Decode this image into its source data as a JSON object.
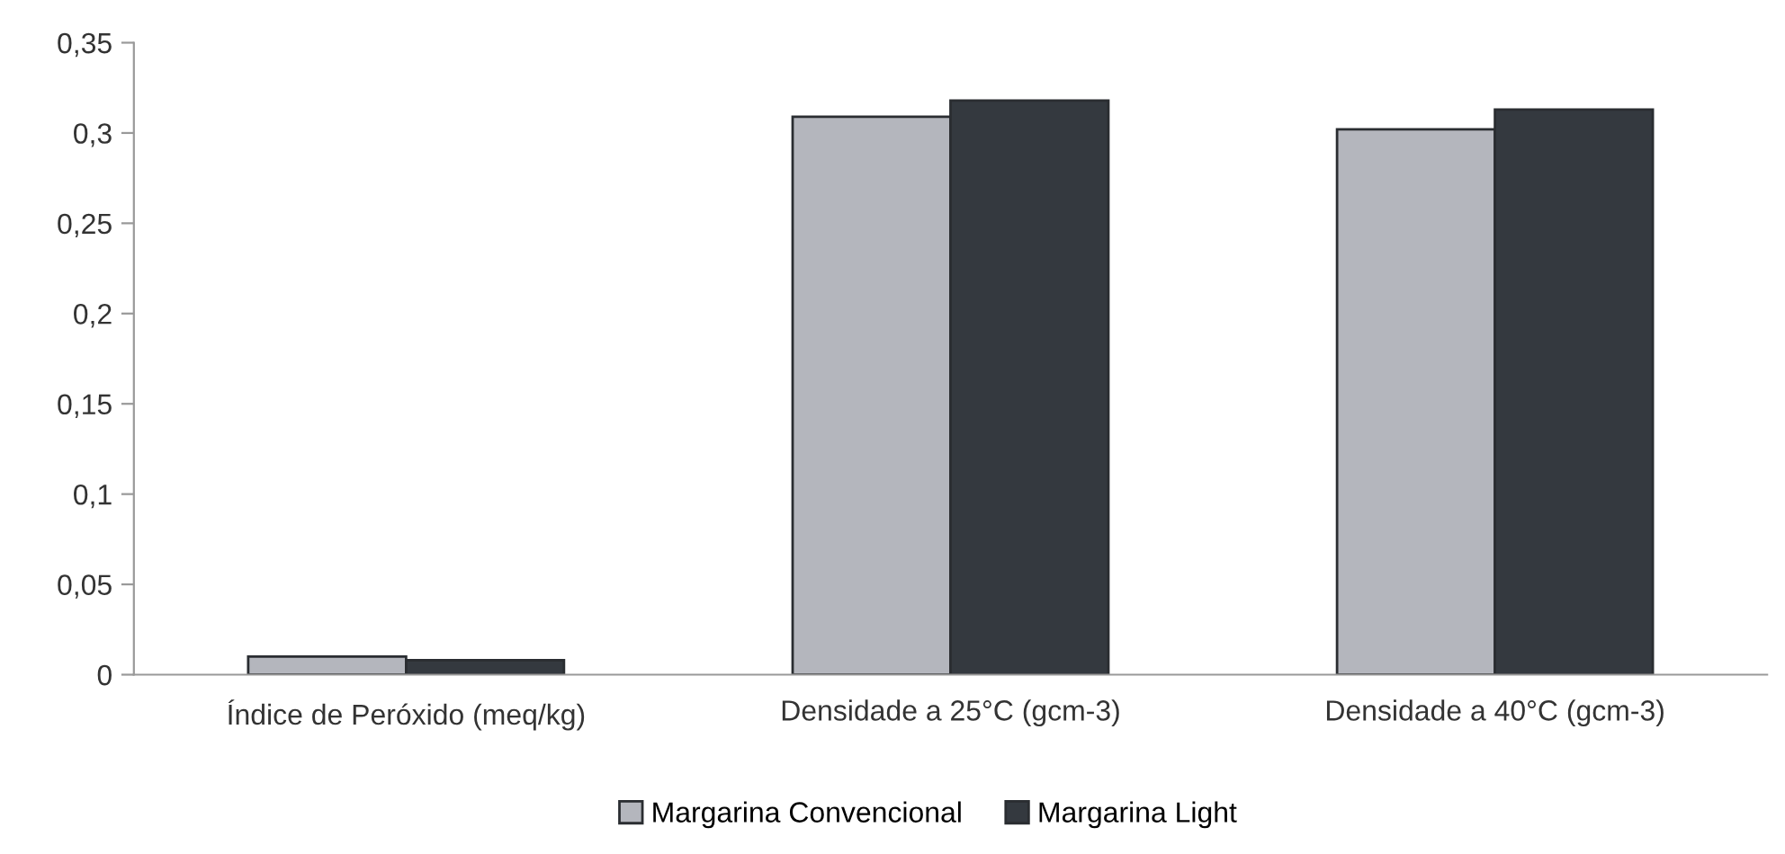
{
  "chart_data": {
    "type": "bar",
    "categories": [
      "Índice de Peróxido (meq/kg)",
      "Densidade a 25°C (gcm-3)",
      "Densidade a 40°C (gcm-3)"
    ],
    "series": [
      {
        "name": "Margarina Convencional",
        "color": "#b4b6bd",
        "values": [
          0.01,
          0.309,
          0.302
        ]
      },
      {
        "name": "Margarina Light",
        "color": "#34393f",
        "values": [
          0.008,
          0.318,
          0.313
        ]
      }
    ],
    "ylim": [
      0,
      0.35
    ],
    "yticks": [
      0,
      {
        "value": 0.05,
        "label": "0,05"
      },
      {
        "value": 0.1,
        "label": "0,1"
      },
      {
        "value": 0.15,
        "label": "0,15"
      },
      {
        "value": 0.2,
        "label": "0,2"
      },
      {
        "value": 0.25,
        "label": "0,25"
      },
      {
        "value": 0.3,
        "label": "0,3"
      },
      {
        "value": 0.35,
        "label": "0,35"
      }
    ],
    "grid": false,
    "legend": "bottom"
  }
}
